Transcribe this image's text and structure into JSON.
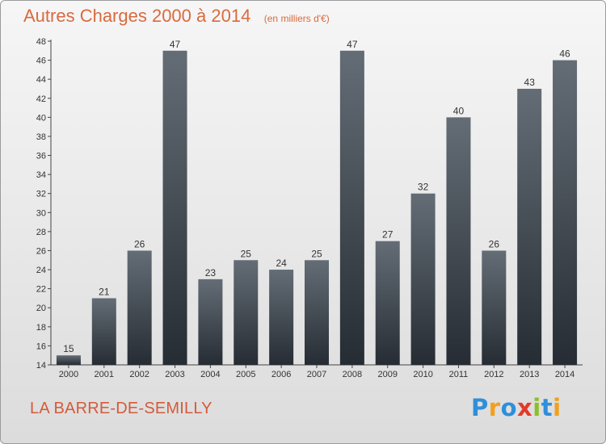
{
  "header": {
    "title": "Autres Charges 2000 à 2014",
    "subtitle": "(en milliers d'€)"
  },
  "footer": {
    "commune": "LA BARRE-DE-SEMILLY",
    "logo": [
      "P",
      "r",
      "o",
      "x",
      "i",
      "t",
      "i"
    ]
  },
  "colors": {
    "bar_top": "#646d76",
    "bar_bottom": "#262c33",
    "title": "#d96a3f",
    "commune": "#d55a3a"
  },
  "chart_data": {
    "type": "bar",
    "title": "Autres Charges 2000 à 2014",
    "subtitle": "(en milliers d'€)",
    "categories": [
      "2000",
      "2001",
      "2002",
      "2003",
      "2004",
      "2005",
      "2006",
      "2007",
      "2008",
      "2009",
      "2010",
      "2011",
      "2012",
      "2013",
      "2014"
    ],
    "values": [
      15,
      21,
      26,
      47,
      23,
      25,
      24,
      25,
      47,
      27,
      32,
      40,
      26,
      43,
      46
    ],
    "ylim": [
      14,
      48
    ],
    "yticks": [
      14,
      16,
      18,
      20,
      22,
      24,
      26,
      28,
      30,
      32,
      34,
      36,
      38,
      40,
      42,
      44,
      46,
      48
    ],
    "xlabel": "",
    "ylabel": "",
    "data_labels": true,
    "grid": false,
    "legend": "none"
  }
}
